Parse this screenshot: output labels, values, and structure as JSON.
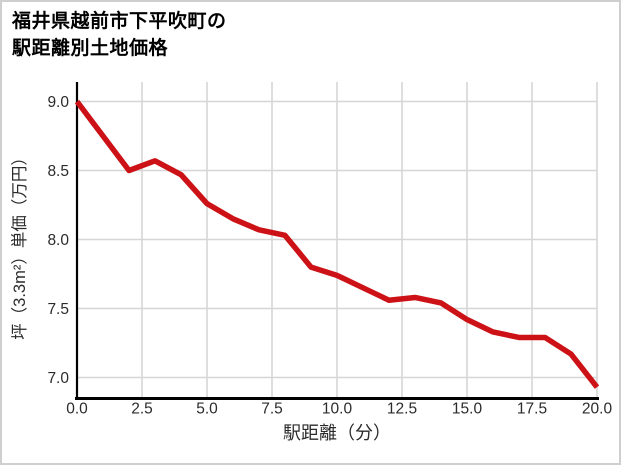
{
  "header": {
    "title_line1": "福井県越前市下平吹町の",
    "title_line2": "駅距離別土地価格"
  },
  "chart_data": {
    "type": "line",
    "title": "福井県越前市下平吹町の駅距離別土地価格",
    "xlabel": "駅距離（分）",
    "ylabel": "坪（3.3m²）単価（万円）",
    "x": [
      0,
      1,
      2,
      3,
      4,
      5,
      6,
      7,
      8,
      9,
      10,
      11,
      12,
      13,
      14,
      15,
      16,
      17,
      18,
      19,
      20
    ],
    "values": [
      9.0,
      8.75,
      8.5,
      8.57,
      8.47,
      8.26,
      8.15,
      8.07,
      8.03,
      7.8,
      7.74,
      7.65,
      7.56,
      7.58,
      7.54,
      7.42,
      7.33,
      7.29,
      7.29,
      7.17,
      6.93
    ],
    "xlim": [
      0,
      20
    ],
    "ylim": [
      6.85,
      9.05
    ],
    "xticks": [
      "0.0",
      "2.5",
      "5.0",
      "7.5",
      "10.0",
      "12.5",
      "15.0",
      "17.5",
      "20.0"
    ],
    "yticks": [
      "9.0",
      "8.5",
      "8.0",
      "7.5",
      "7.0"
    ],
    "grid": true,
    "legend_position": "none"
  },
  "style": {
    "line_color": "#cc1216",
    "grid_color": "#d6d6d6",
    "axis_color": "#000000",
    "tick_text_color": "#2b2b2b",
    "border_color": "#cfcfcf"
  }
}
